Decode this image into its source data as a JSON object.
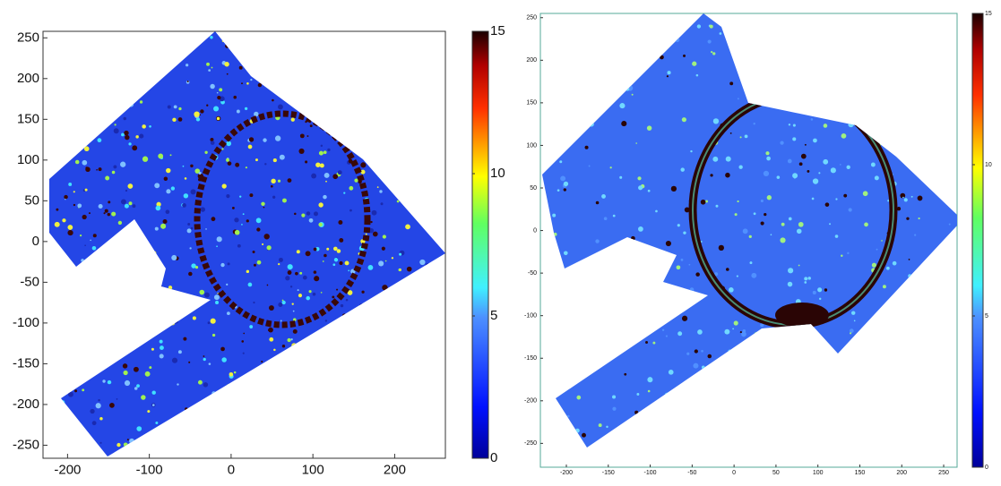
{
  "chart_data": [
    {
      "type": "heatmap",
      "xlim": [
        -230,
        262
      ],
      "ylim": [
        -266,
        258
      ],
      "xticks": [
        -200,
        -100,
        0,
        100,
        200
      ],
      "yticks": [
        -250,
        -200,
        -150,
        -100,
        -50,
        0,
        50,
        100,
        150,
        200,
        250
      ],
      "clim": [
        0,
        15
      ],
      "colorbar_ticks": [
        0,
        5,
        10,
        15
      ]
    },
    {
      "type": "heatmap",
      "xlim": [
        -231,
        266
      ],
      "ylim": [
        -278,
        255
      ],
      "xticks": [
        -200,
        -150,
        -100,
        -50,
        0,
        50,
        100,
        150,
        200,
        250
      ],
      "yticks": [
        -250,
        -200,
        -150,
        -100,
        -50,
        0,
        50,
        100,
        150,
        200,
        250
      ],
      "clim": [
        0,
        15
      ],
      "colorbar_ticks": [
        0,
        5,
        10,
        15
      ]
    }
  ]
}
